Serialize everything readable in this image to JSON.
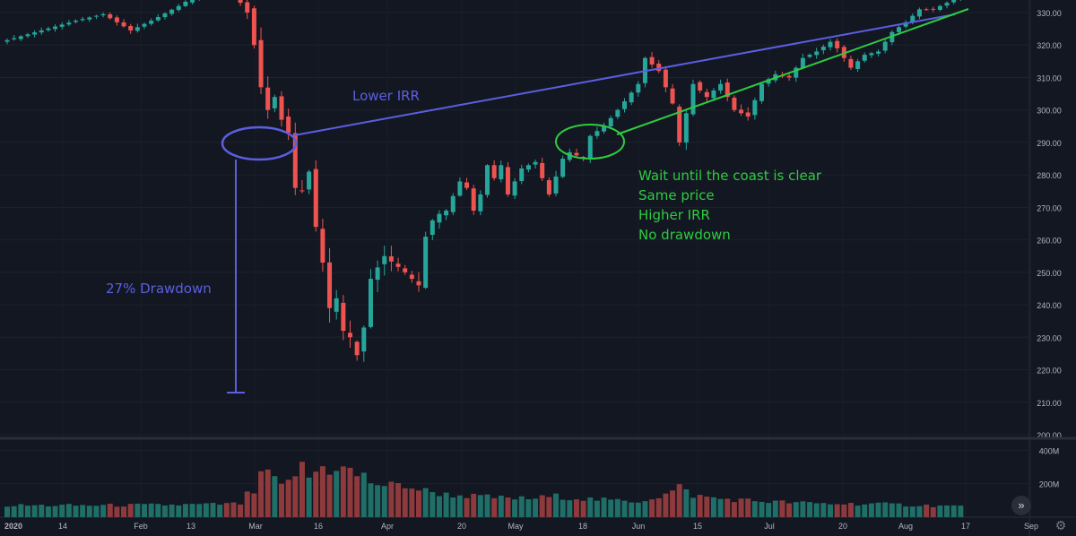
{
  "chart_data": {
    "type": "candlestick",
    "title": "",
    "colors": {
      "up": "#26a69a",
      "down": "#ef5350",
      "grid": "#1e222d",
      "text": "#b2b5be",
      "background": "#131722"
    },
    "price_axis": {
      "ticks": [
        "330.00",
        "320.00",
        "310.00",
        "300.00",
        "290.00",
        "280.00",
        "270.00",
        "260.00",
        "250.00",
        "240.00",
        "230.00",
        "220.00",
        "210.00",
        "200.00"
      ],
      "range": [
        198,
        334
      ]
    },
    "volume_axis": {
      "ticks": [
        "400M",
        "200M"
      ],
      "max": 450
    },
    "time_axis": {
      "labels": [
        "2020",
        "14",
        "Feb",
        "13",
        "Mar",
        "16",
        "Apr",
        "20",
        "May",
        "18",
        "Jun",
        "15",
        "Jul",
        "20",
        "Aug",
        "17",
        "Sep"
      ],
      "bold_label": "2020"
    },
    "ohlc_keypoints": [
      [
        0,
        321.5,
        0.7
      ],
      [
        5,
        324.5,
        0.6
      ],
      [
        10,
        327.5,
        0.5
      ],
      [
        14,
        329.5,
        0.5
      ],
      [
        18,
        324.5,
        0.8
      ],
      [
        21,
        327.5,
        0.5
      ],
      [
        25,
        332.0,
        0.5
      ],
      [
        28,
        336.0,
        0.6
      ],
      [
        31,
        337.5,
        0.5
      ],
      [
        33,
        336.0,
        1.0
      ],
      [
        35,
        330.0,
        2.5
      ],
      [
        36,
        320.0,
        3.0
      ],
      [
        37,
        307.0,
        4.0
      ],
      [
        38,
        300.0,
        3.5
      ],
      [
        39,
        304.0,
        2.0
      ],
      [
        40,
        297.0,
        2.5
      ],
      [
        41,
        293.0,
        2.5
      ],
      [
        42,
        276.0,
        3.5
      ],
      [
        43,
        275.0,
        3.0
      ],
      [
        44,
        281.0,
        3.0
      ],
      [
        45,
        264.0,
        3.0
      ],
      [
        46,
        253.0,
        3.0
      ],
      [
        47,
        239.0,
        4.0
      ],
      [
        48,
        242.0,
        3.5
      ],
      [
        49,
        232.0,
        4.0
      ],
      [
        50,
        230.0,
        3.5
      ],
      [
        51,
        224.5,
        4.0
      ],
      [
        52,
        233.0,
        4.0
      ],
      [
        53,
        248.0,
        3.5
      ],
      [
        55,
        255.0,
        3.0
      ],
      [
        58,
        250.0,
        2.5
      ],
      [
        60,
        246.0,
        2.5
      ],
      [
        61,
        261.0,
        2.0
      ],
      [
        62,
        266.0,
        2.0
      ],
      [
        63,
        268.0,
        1.5
      ],
      [
        64,
        269.0,
        1.2
      ],
      [
        66,
        278.0,
        1.2
      ],
      [
        67,
        276.0,
        1.3
      ],
      [
        68,
        269.0,
        1.5
      ],
      [
        69,
        274.0,
        1.3
      ],
      [
        70,
        283.0,
        1.3
      ],
      [
        71,
        279.0,
        1.5
      ],
      [
        72,
        283.0,
        1.2
      ],
      [
        73,
        274.0,
        1.4
      ],
      [
        75,
        282.0,
        1.2
      ],
      [
        77,
        284.0,
        1.0
      ],
      [
        79,
        274.0,
        1.5
      ],
      [
        81,
        285.0,
        1.2
      ],
      [
        82,
        287.0,
        1.0
      ],
      [
        84,
        285.0,
        1.2
      ],
      [
        85,
        292.0,
        1.0
      ],
      [
        87,
        295.0,
        1.0
      ],
      [
        89,
        300.0,
        1.0
      ],
      [
        92,
        308.0,
        1.0
      ],
      [
        93,
        316.0,
        1.2
      ],
      [
        95,
        312.0,
        1.1
      ],
      [
        97,
        302.0,
        1.2
      ],
      [
        98,
        290.0,
        2.5
      ],
      [
        100,
        308.0,
        1.6
      ],
      [
        102,
        304.0,
        1.3
      ],
      [
        104,
        308.0,
        1.1
      ],
      [
        106,
        300.0,
        1.5
      ],
      [
        108,
        298.0,
        1.2
      ],
      [
        110,
        308.0,
        1.0
      ],
      [
        112,
        311.0,
        0.9
      ],
      [
        114,
        310.0,
        1.0
      ],
      [
        116,
        316.0,
        0.9
      ],
      [
        118,
        318.0,
        0.9
      ],
      [
        120,
        321.0,
        0.8
      ],
      [
        121,
        319.0,
        1.0
      ],
      [
        123,
        313.0,
        0.9
      ],
      [
        125,
        317.0,
        0.8
      ],
      [
        127,
        318.0,
        0.7
      ],
      [
        129,
        324.0,
        0.6
      ],
      [
        131,
        327.0,
        0.6
      ],
      [
        133,
        331.0,
        0.5
      ],
      [
        135,
        331.0,
        0.5
      ],
      [
        137,
        333.0,
        0.5
      ],
      [
        139,
        336.0,
        0.5
      ]
    ],
    "volume_keypoints": [
      [
        0,
        70
      ],
      [
        10,
        70
      ],
      [
        20,
        72
      ],
      [
        28,
        75
      ],
      [
        34,
        80
      ],
      [
        35,
        135
      ],
      [
        36,
        150
      ],
      [
        37,
        240
      ],
      [
        38,
        280
      ],
      [
        39,
        220
      ],
      [
        40,
        180
      ],
      [
        41,
        210
      ],
      [
        42,
        260
      ],
      [
        43,
        300
      ],
      [
        44,
        240
      ],
      [
        45,
        270
      ],
      [
        46,
        300
      ],
      [
        47,
        280
      ],
      [
        48,
        300
      ],
      [
        49,
        290
      ],
      [
        50,
        280
      ],
      [
        51,
        250
      ],
      [
        52,
        245
      ],
      [
        53,
        210
      ],
      [
        55,
        190
      ],
      [
        58,
        190
      ],
      [
        60,
        165
      ],
      [
        62,
        150
      ],
      [
        64,
        135
      ],
      [
        68,
        125
      ],
      [
        72,
        115
      ],
      [
        76,
        110
      ],
      [
        80,
        125
      ],
      [
        84,
        110
      ],
      [
        88,
        100
      ],
      [
        92,
        95
      ],
      [
        96,
        135
      ],
      [
        98,
        180
      ],
      [
        100,
        130
      ],
      [
        104,
        110
      ],
      [
        110,
        95
      ],
      [
        116,
        85
      ],
      [
        120,
        80
      ],
      [
        126,
        80
      ],
      [
        130,
        75
      ],
      [
        134,
        70
      ],
      [
        139,
        65
      ]
    ]
  },
  "annotations": {
    "lower_irr": "Lower IRR",
    "drawdown": "27% Drawdown",
    "wait_lines": [
      "Wait until the coast is clear",
      "Same price",
      "Higher IRR",
      "No drawdown"
    ]
  },
  "ui": {
    "scroll_icon": "double-chevron-right-icon",
    "scroll_glyph": "»",
    "corner_icon": "settings-gear-icon",
    "corner_glyph": "⚙"
  }
}
